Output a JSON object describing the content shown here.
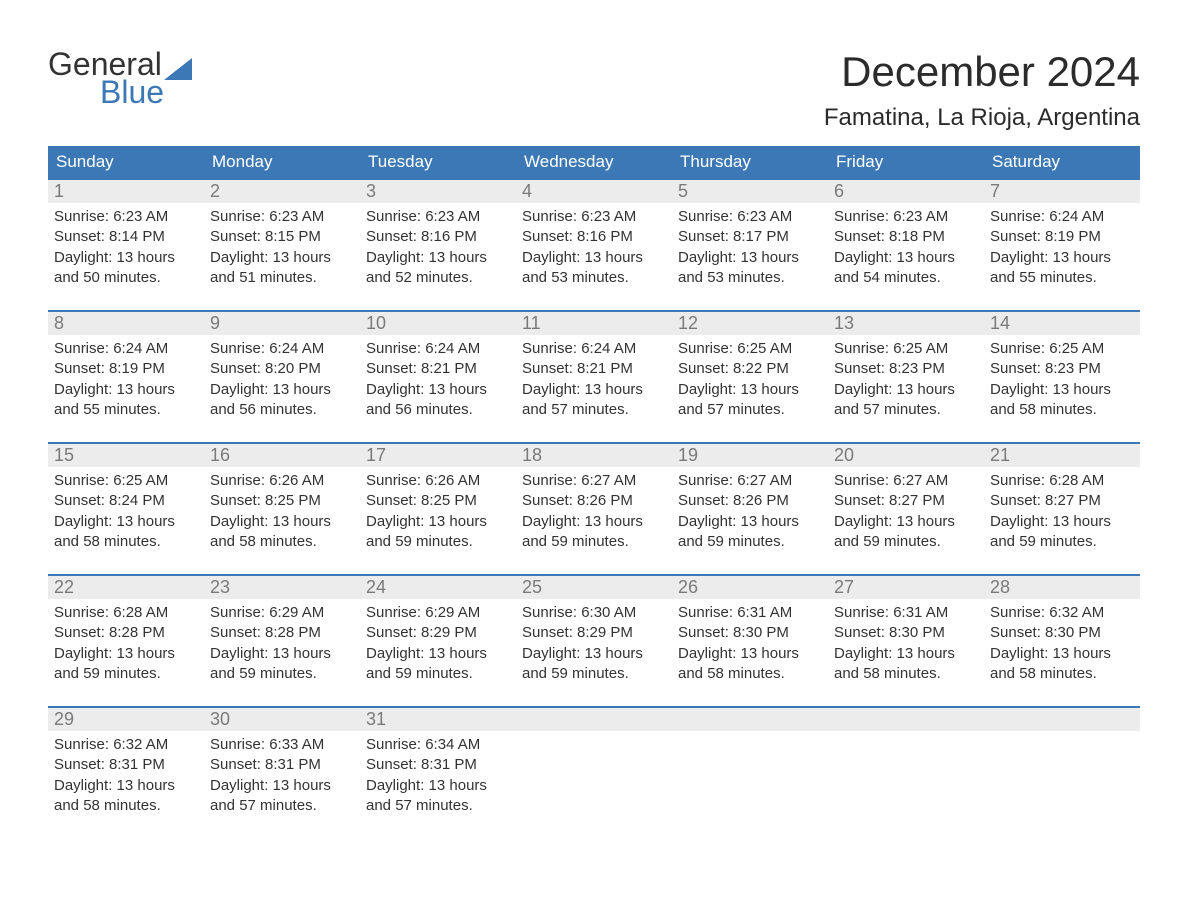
{
  "brand": {
    "word1": "General",
    "word2": "Blue",
    "accent_color": "#3b78b5"
  },
  "header": {
    "month_title": "December 2024",
    "location": "Famatina, La Rioja, Argentina"
  },
  "colors": {
    "header_bg": "#3b78b5",
    "header_text": "#ffffff",
    "daynum_bg": "#ececec",
    "daynum_text": "#7a7a7a",
    "body_text": "#333333",
    "week_border": "#3b78b5",
    "page_bg": "#ffffff"
  },
  "calendar": {
    "day_headers": [
      "Sunday",
      "Monday",
      "Tuesday",
      "Wednesday",
      "Thursday",
      "Friday",
      "Saturday"
    ],
    "weeks": [
      [
        {
          "date": "1",
          "sunrise": "Sunrise: 6:23 AM",
          "sunset": "Sunset: 8:14 PM",
          "daylight1": "Daylight: 13 hours",
          "daylight2": "and 50 minutes."
        },
        {
          "date": "2",
          "sunrise": "Sunrise: 6:23 AM",
          "sunset": "Sunset: 8:15 PM",
          "daylight1": "Daylight: 13 hours",
          "daylight2": "and 51 minutes."
        },
        {
          "date": "3",
          "sunrise": "Sunrise: 6:23 AM",
          "sunset": "Sunset: 8:16 PM",
          "daylight1": "Daylight: 13 hours",
          "daylight2": "and 52 minutes."
        },
        {
          "date": "4",
          "sunrise": "Sunrise: 6:23 AM",
          "sunset": "Sunset: 8:16 PM",
          "daylight1": "Daylight: 13 hours",
          "daylight2": "and 53 minutes."
        },
        {
          "date": "5",
          "sunrise": "Sunrise: 6:23 AM",
          "sunset": "Sunset: 8:17 PM",
          "daylight1": "Daylight: 13 hours",
          "daylight2": "and 53 minutes."
        },
        {
          "date": "6",
          "sunrise": "Sunrise: 6:23 AM",
          "sunset": "Sunset: 8:18 PM",
          "daylight1": "Daylight: 13 hours",
          "daylight2": "and 54 minutes."
        },
        {
          "date": "7",
          "sunrise": "Sunrise: 6:24 AM",
          "sunset": "Sunset: 8:19 PM",
          "daylight1": "Daylight: 13 hours",
          "daylight2": "and 55 minutes."
        }
      ],
      [
        {
          "date": "8",
          "sunrise": "Sunrise: 6:24 AM",
          "sunset": "Sunset: 8:19 PM",
          "daylight1": "Daylight: 13 hours",
          "daylight2": "and 55 minutes."
        },
        {
          "date": "9",
          "sunrise": "Sunrise: 6:24 AM",
          "sunset": "Sunset: 8:20 PM",
          "daylight1": "Daylight: 13 hours",
          "daylight2": "and 56 minutes."
        },
        {
          "date": "10",
          "sunrise": "Sunrise: 6:24 AM",
          "sunset": "Sunset: 8:21 PM",
          "daylight1": "Daylight: 13 hours",
          "daylight2": "and 56 minutes."
        },
        {
          "date": "11",
          "sunrise": "Sunrise: 6:24 AM",
          "sunset": "Sunset: 8:21 PM",
          "daylight1": "Daylight: 13 hours",
          "daylight2": "and 57 minutes."
        },
        {
          "date": "12",
          "sunrise": "Sunrise: 6:25 AM",
          "sunset": "Sunset: 8:22 PM",
          "daylight1": "Daylight: 13 hours",
          "daylight2": "and 57 minutes."
        },
        {
          "date": "13",
          "sunrise": "Sunrise: 6:25 AM",
          "sunset": "Sunset: 8:23 PM",
          "daylight1": "Daylight: 13 hours",
          "daylight2": "and 57 minutes."
        },
        {
          "date": "14",
          "sunrise": "Sunrise: 6:25 AM",
          "sunset": "Sunset: 8:23 PM",
          "daylight1": "Daylight: 13 hours",
          "daylight2": "and 58 minutes."
        }
      ],
      [
        {
          "date": "15",
          "sunrise": "Sunrise: 6:25 AM",
          "sunset": "Sunset: 8:24 PM",
          "daylight1": "Daylight: 13 hours",
          "daylight2": "and 58 minutes."
        },
        {
          "date": "16",
          "sunrise": "Sunrise: 6:26 AM",
          "sunset": "Sunset: 8:25 PM",
          "daylight1": "Daylight: 13 hours",
          "daylight2": "and 58 minutes."
        },
        {
          "date": "17",
          "sunrise": "Sunrise: 6:26 AM",
          "sunset": "Sunset: 8:25 PM",
          "daylight1": "Daylight: 13 hours",
          "daylight2": "and 59 minutes."
        },
        {
          "date": "18",
          "sunrise": "Sunrise: 6:27 AM",
          "sunset": "Sunset: 8:26 PM",
          "daylight1": "Daylight: 13 hours",
          "daylight2": "and 59 minutes."
        },
        {
          "date": "19",
          "sunrise": "Sunrise: 6:27 AM",
          "sunset": "Sunset: 8:26 PM",
          "daylight1": "Daylight: 13 hours",
          "daylight2": "and 59 minutes."
        },
        {
          "date": "20",
          "sunrise": "Sunrise: 6:27 AM",
          "sunset": "Sunset: 8:27 PM",
          "daylight1": "Daylight: 13 hours",
          "daylight2": "and 59 minutes."
        },
        {
          "date": "21",
          "sunrise": "Sunrise: 6:28 AM",
          "sunset": "Sunset: 8:27 PM",
          "daylight1": "Daylight: 13 hours",
          "daylight2": "and 59 minutes."
        }
      ],
      [
        {
          "date": "22",
          "sunrise": "Sunrise: 6:28 AM",
          "sunset": "Sunset: 8:28 PM",
          "daylight1": "Daylight: 13 hours",
          "daylight2": "and 59 minutes."
        },
        {
          "date": "23",
          "sunrise": "Sunrise: 6:29 AM",
          "sunset": "Sunset: 8:28 PM",
          "daylight1": "Daylight: 13 hours",
          "daylight2": "and 59 minutes."
        },
        {
          "date": "24",
          "sunrise": "Sunrise: 6:29 AM",
          "sunset": "Sunset: 8:29 PM",
          "daylight1": "Daylight: 13 hours",
          "daylight2": "and 59 minutes."
        },
        {
          "date": "25",
          "sunrise": "Sunrise: 6:30 AM",
          "sunset": "Sunset: 8:29 PM",
          "daylight1": "Daylight: 13 hours",
          "daylight2": "and 59 minutes."
        },
        {
          "date": "26",
          "sunrise": "Sunrise: 6:31 AM",
          "sunset": "Sunset: 8:30 PM",
          "daylight1": "Daylight: 13 hours",
          "daylight2": "and 58 minutes."
        },
        {
          "date": "27",
          "sunrise": "Sunrise: 6:31 AM",
          "sunset": "Sunset: 8:30 PM",
          "daylight1": "Daylight: 13 hours",
          "daylight2": "and 58 minutes."
        },
        {
          "date": "28",
          "sunrise": "Sunrise: 6:32 AM",
          "sunset": "Sunset: 8:30 PM",
          "daylight1": "Daylight: 13 hours",
          "daylight2": "and 58 minutes."
        }
      ],
      [
        {
          "date": "29",
          "sunrise": "Sunrise: 6:32 AM",
          "sunset": "Sunset: 8:31 PM",
          "daylight1": "Daylight: 13 hours",
          "daylight2": "and 58 minutes."
        },
        {
          "date": "30",
          "sunrise": "Sunrise: 6:33 AM",
          "sunset": "Sunset: 8:31 PM",
          "daylight1": "Daylight: 13 hours",
          "daylight2": "and 57 minutes."
        },
        {
          "date": "31",
          "sunrise": "Sunrise: 6:34 AM",
          "sunset": "Sunset: 8:31 PM",
          "daylight1": "Daylight: 13 hours",
          "daylight2": "and 57 minutes."
        },
        {
          "empty": true
        },
        {
          "empty": true
        },
        {
          "empty": true
        },
        {
          "empty": true
        }
      ]
    ]
  }
}
